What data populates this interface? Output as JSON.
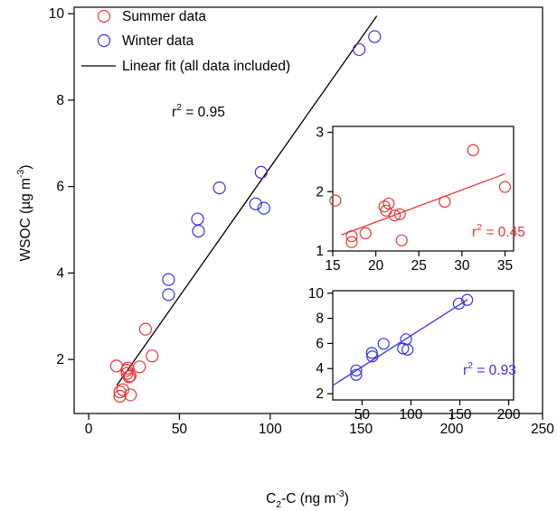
{
  "chart_data": [
    {
      "id": "main",
      "type": "scatter",
      "xlabel_base": "C",
      "xlabel_sub": "2",
      "xlabel_rest": "-C (ng m",
      "xlabel_sup": "-3",
      "xlabel_close": ")",
      "ylabel_base": "WSOC (µg m",
      "ylabel_sup": "-3",
      "ylabel_close": ")",
      "xlim": [
        -8,
        250
      ],
      "ylim": [
        0.75,
        10.15
      ],
      "xticks": [
        0,
        50,
        100,
        150,
        200,
        250
      ],
      "yticks": [
        2,
        4,
        6,
        8,
        10
      ],
      "series": [
        {
          "name": "Summer data",
          "color": "#ee3333",
          "points": [
            [
              15.3,
              1.85
            ],
            [
              17.2,
              1.25
            ],
            [
              17.2,
              1.15
            ],
            [
              18.8,
              1.3
            ],
            [
              21,
              1.75
            ],
            [
              21.5,
              1.8
            ],
            [
              21.2,
              1.68
            ],
            [
              22.2,
              1.6
            ],
            [
              22.8,
              1.62
            ],
            [
              23,
              1.18
            ],
            [
              28,
              1.83
            ],
            [
              31.3,
              2.7
            ],
            [
              35,
              2.08
            ]
          ]
        },
        {
          "name": "Winter data",
          "color": "#3333ee",
          "points": [
            [
              44,
              3.85
            ],
            [
              44,
              3.5
            ],
            [
              60,
              5.25
            ],
            [
              60.5,
              4.97
            ],
            [
              72,
              5.97
            ],
            [
              92,
              5.6
            ],
            [
              95,
              6.33
            ],
            [
              96.5,
              5.5
            ],
            [
              149,
              9.17
            ],
            [
              157.5,
              9.47
            ]
          ]
        }
      ],
      "fit": {
        "name": "Linear fit (all data included)",
        "x": [
          15.5,
          158.7
        ],
        "y": [
          1.4,
          9.95
        ],
        "color": "#000000"
      },
      "r2_label": "r",
      "r2_sup": "2",
      "r2_value": " = 0.95"
    },
    {
      "id": "inset-summer",
      "type": "scatter",
      "xlim": [
        15,
        36
      ],
      "ylim": [
        1,
        3.1
      ],
      "xticks": [
        15,
        20,
        25,
        30,
        35
      ],
      "yticks": [
        1,
        2,
        3
      ],
      "series": [
        {
          "name": "Summer data",
          "color": "#ee3333",
          "points": [
            [
              15.3,
              1.85
            ],
            [
              17.2,
              1.25
            ],
            [
              17.2,
              1.15
            ],
            [
              18.8,
              1.3
            ],
            [
              21,
              1.75
            ],
            [
              21.5,
              1.8
            ],
            [
              21.2,
              1.68
            ],
            [
              22.2,
              1.6
            ],
            [
              22.8,
              1.62
            ],
            [
              23,
              1.18
            ],
            [
              28,
              1.83
            ],
            [
              31.3,
              2.7
            ],
            [
              35,
              2.08
            ]
          ]
        }
      ],
      "fit": {
        "x": [
          16,
          35
        ],
        "y": [
          1.27,
          2.3
        ],
        "color": "#ee3333"
      },
      "r2_label": "r",
      "r2_sup": "2",
      "r2_value": " = 0.45",
      "label_color": "#ee3333"
    },
    {
      "id": "inset-winter",
      "type": "scatter",
      "xlim": [
        20,
        205
      ],
      "ylim": [
        1.5,
        10.2
      ],
      "xticks": [
        50,
        100,
        150,
        200
      ],
      "yticks": [
        2,
        4,
        6,
        8,
        10
      ],
      "series": [
        {
          "name": "Winter data",
          "color": "#3333ee",
          "points": [
            [
              44,
              3.85
            ],
            [
              44,
              3.5
            ],
            [
              60,
              5.25
            ],
            [
              60.5,
              4.97
            ],
            [
              72,
              5.97
            ],
            [
              92,
              5.6
            ],
            [
              95,
              6.33
            ],
            [
              96.5,
              5.5
            ],
            [
              149,
              9.17
            ],
            [
              157.5,
              9.47
            ]
          ]
        }
      ],
      "fit": {
        "x": [
          20,
          158
        ],
        "y": [
          2.65,
          9.5
        ],
        "color": "#3333ee"
      },
      "r2_label": "r",
      "r2_sup": "2",
      "r2_value": " = 0.93",
      "label_color": "#3333ee"
    }
  ],
  "legend": {
    "summer_label": "Summer data",
    "winter_label": "Winter data",
    "fit_label": "Linear fit (all data included)",
    "summer_color": "#ee3333",
    "winter_color": "#3333ee",
    "fit_color": "#000000"
  }
}
